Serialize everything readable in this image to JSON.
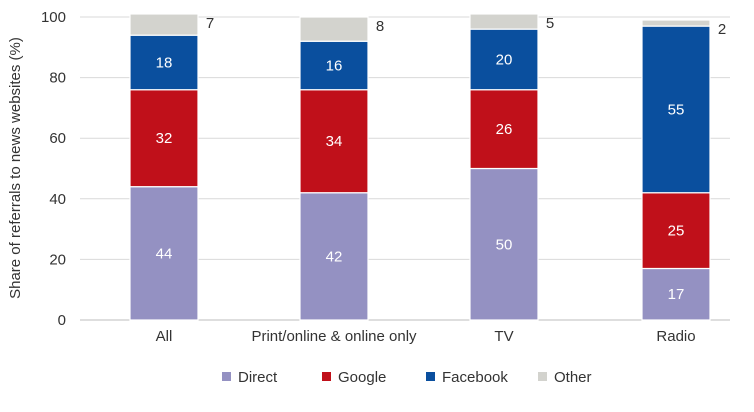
{
  "chart_data": {
    "type": "bar",
    "stacked": true,
    "title": "",
    "xlabel": "",
    "ylabel": "Share of referrals to news websites (%)",
    "ylim": [
      0,
      100
    ],
    "yticks": [
      0,
      20,
      40,
      60,
      80,
      100
    ],
    "grid": true,
    "legend_position": "bottom",
    "categories": [
      "All",
      "Print/online & online only",
      "TV",
      "Radio"
    ],
    "series": [
      {
        "name": "Direct",
        "color": "#9491c2",
        "label_color": "#ffffff",
        "values": [
          44,
          42,
          50,
          17
        ]
      },
      {
        "name": "Google",
        "color": "#c0101a",
        "label_color": "#ffffff",
        "values": [
          32,
          34,
          26,
          25
        ]
      },
      {
        "name": "Facebook",
        "color": "#0a4f9e",
        "label_color": "#ffffff",
        "values": [
          18,
          16,
          20,
          55
        ]
      },
      {
        "name": "Other",
        "color": "#d3d3ce",
        "label_color": "#333333",
        "values": [
          7,
          8,
          5,
          2
        ],
        "labels_outside": true
      }
    ]
  }
}
